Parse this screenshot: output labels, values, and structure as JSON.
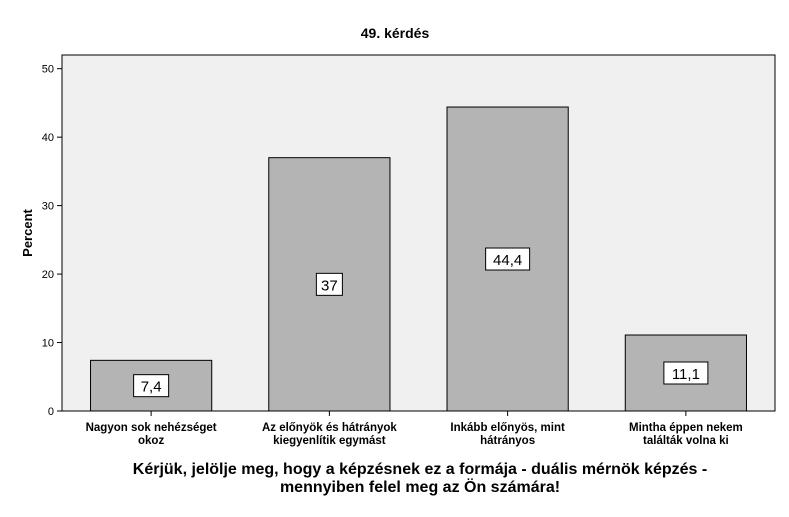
{
  "chart_data": {
    "type": "bar",
    "title": "49. kérdés",
    "ylabel": "Percent",
    "xlabel": "Kérjük, jelölje meg, hogy a képzésnek ez a formája - duális mérnök képzés - mennyiben felel meg az Ön számára!",
    "xlabel_lines": [
      "Kérjük, jelölje meg, hogy a képzésnek ez a formája - duális mérnök képzés -",
      "mennyiben felel meg az Ön számára!"
    ],
    "categories": [
      [
        "Nagyon sok nehézséget",
        "okoz"
      ],
      [
        "Az előnyök és hátrányok",
        "kiegyenlítik egymást"
      ],
      [
        "Inkább előnyös, mint",
        "hátrányos"
      ],
      [
        "Mintha éppen nekem",
        "találták volna ki"
      ]
    ],
    "values": [
      7.4,
      37,
      44.4,
      11.1
    ],
    "data_labels": [
      "7,4",
      "37",
      "44,4",
      "11,1"
    ],
    "yticks": [
      0,
      10,
      20,
      30,
      40,
      50
    ],
    "ylim": [
      0,
      52
    ],
    "grid": false,
    "legend": "none",
    "colors": {
      "bar_fill": "#b4b4b4",
      "plot_background": "#f0f0f0",
      "axis": "#000000"
    }
  }
}
